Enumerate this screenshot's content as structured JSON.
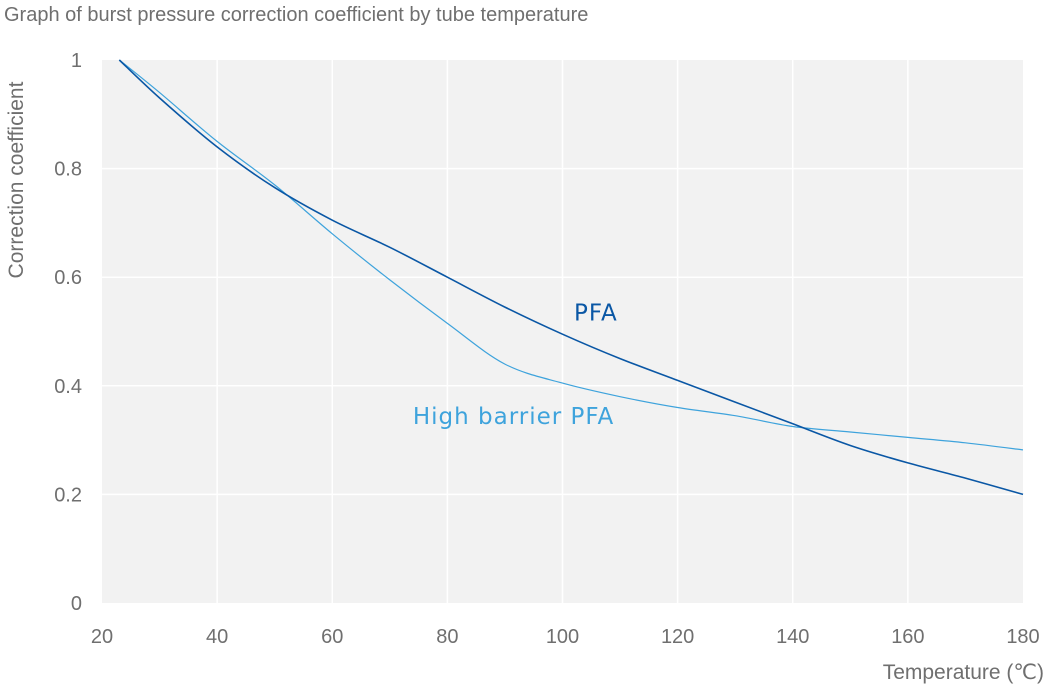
{
  "chart_data": {
    "type": "line",
    "title": "Graph of burst pressure correction coefficient by tube temperature",
    "xlabel": "Temperature (℃)",
    "ylabel": "Correction coefficient",
    "xlim": [
      20,
      180
    ],
    "ylim": [
      0,
      1
    ],
    "xticks": [
      "20",
      "40",
      "60",
      "80",
      "100",
      "120",
      "140",
      "160",
      "180"
    ],
    "yticks": [
      "0",
      "0.2",
      "0.4",
      "0.6",
      "0.8",
      "1"
    ],
    "grid": true,
    "legend": "inline labels",
    "series": [
      {
        "name": "PFA",
        "color": "#0a57a5",
        "label_at": [
          102,
          0.52
        ],
        "points": [
          [
            23,
            1.0
          ],
          [
            30,
            0.93
          ],
          [
            40,
            0.84
          ],
          [
            50,
            0.765
          ],
          [
            60,
            0.705
          ],
          [
            70,
            0.655
          ],
          [
            80,
            0.6
          ],
          [
            90,
            0.545
          ],
          [
            100,
            0.495
          ],
          [
            110,
            0.45
          ],
          [
            120,
            0.41
          ],
          [
            130,
            0.37
          ],
          [
            140,
            0.33
          ],
          [
            150,
            0.29
          ],
          [
            160,
            0.258
          ],
          [
            170,
            0.23
          ],
          [
            180,
            0.2
          ]
        ]
      },
      {
        "name": "High barrier PFA",
        "color": "#3ea3dc",
        "label_at": [
          74,
          0.33
        ],
        "points": [
          [
            23,
            1.0
          ],
          [
            30,
            0.94
          ],
          [
            40,
            0.85
          ],
          [
            50,
            0.77
          ],
          [
            60,
            0.68
          ],
          [
            70,
            0.595
          ],
          [
            80,
            0.515
          ],
          [
            90,
            0.44
          ],
          [
            100,
            0.405
          ],
          [
            110,
            0.38
          ],
          [
            120,
            0.36
          ],
          [
            130,
            0.345
          ],
          [
            140,
            0.325
          ],
          [
            150,
            0.315
          ],
          [
            160,
            0.305
          ],
          [
            170,
            0.295
          ],
          [
            180,
            0.282
          ]
        ]
      }
    ]
  }
}
